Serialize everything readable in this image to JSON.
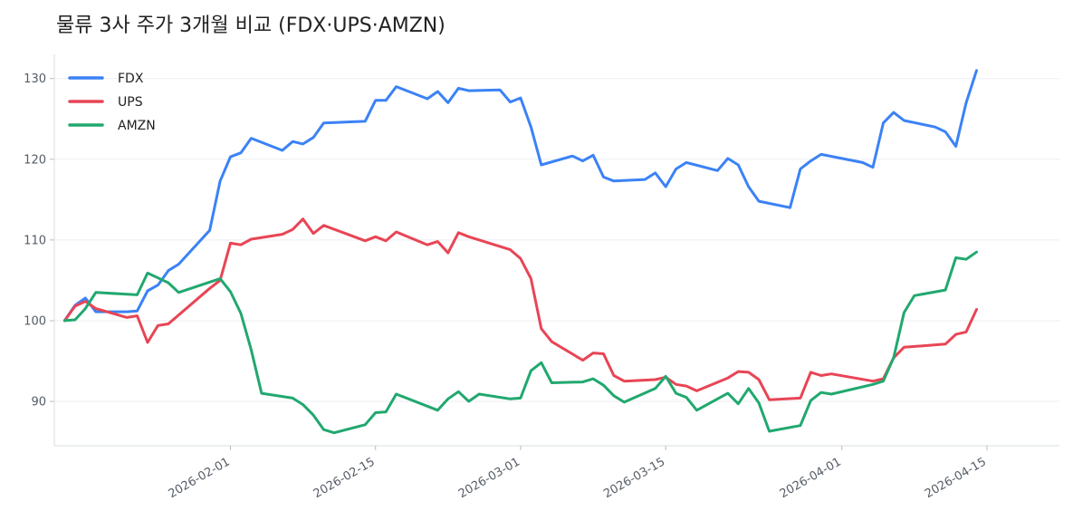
{
  "chart_data": {
    "type": "line",
    "title": "물류 3사 주가 3개월 비교 (FDX·UPS·AMZN)",
    "xlabel": "",
    "ylabel": "",
    "x_ticks": [
      "2026-02-01",
      "2026-02-15",
      "2026-03-01",
      "2026-03-15",
      "2026-04-01",
      "2026-04-15"
    ],
    "y_ticks": [
      90,
      100,
      110,
      120,
      130
    ],
    "xlim": [
      "2026-01-15",
      "2026-04-22"
    ],
    "ylim": [
      84.5,
      133
    ],
    "grid": "horizontal",
    "legend_position": "top-left",
    "series": [
      {
        "name": "FDX",
        "color": "#3b82f6",
        "points": [
          [
            "2026-01-16",
            100.0
          ],
          [
            "2026-01-17",
            101.9
          ],
          [
            "2026-01-18",
            102.8
          ],
          [
            "2026-01-19",
            101.1
          ],
          [
            "2026-01-22",
            101.1
          ],
          [
            "2026-01-23",
            101.2
          ],
          [
            "2026-01-24",
            103.7
          ],
          [
            "2026-01-25",
            104.4
          ],
          [
            "2026-01-26",
            106.2
          ],
          [
            "2026-01-27",
            107.0
          ],
          [
            "2026-01-30",
            111.2
          ],
          [
            "2026-01-31",
            117.3
          ],
          [
            "2026-02-01",
            120.3
          ],
          [
            "2026-02-02",
            120.8
          ],
          [
            "2026-02-03",
            122.6
          ],
          [
            "2026-02-06",
            121.1
          ],
          [
            "2026-02-07",
            122.2
          ],
          [
            "2026-02-08",
            121.9
          ],
          [
            "2026-02-09",
            122.7
          ],
          [
            "2026-02-10",
            124.5
          ],
          [
            "2026-02-14",
            124.7
          ],
          [
            "2026-02-15",
            127.3
          ],
          [
            "2026-02-16",
            127.3
          ],
          [
            "2026-02-17",
            129.0
          ],
          [
            "2026-02-20",
            127.5
          ],
          [
            "2026-02-21",
            128.4
          ],
          [
            "2026-02-22",
            127.0
          ],
          [
            "2026-02-23",
            128.8
          ],
          [
            "2026-02-24",
            128.5
          ],
          [
            "2026-02-27",
            128.6
          ],
          [
            "2026-02-28",
            127.1
          ],
          [
            "2026-03-01",
            127.6
          ],
          [
            "2026-03-02",
            124.0
          ],
          [
            "2026-03-03",
            119.3
          ],
          [
            "2026-03-06",
            120.4
          ],
          [
            "2026-03-07",
            119.8
          ],
          [
            "2026-03-08",
            120.5
          ],
          [
            "2026-03-09",
            117.8
          ],
          [
            "2026-03-10",
            117.3
          ],
          [
            "2026-03-13",
            117.5
          ],
          [
            "2026-03-14",
            118.3
          ],
          [
            "2026-03-15",
            116.6
          ],
          [
            "2026-03-16",
            118.8
          ],
          [
            "2026-03-17",
            119.6
          ],
          [
            "2026-03-20",
            118.6
          ],
          [
            "2026-03-21",
            120.1
          ],
          [
            "2026-03-22",
            119.3
          ],
          [
            "2026-03-23",
            116.6
          ],
          [
            "2026-03-24",
            114.8
          ],
          [
            "2026-03-27",
            114.0
          ],
          [
            "2026-03-28",
            118.8
          ],
          [
            "2026-03-29",
            119.8
          ],
          [
            "2026-03-30",
            120.6
          ],
          [
            "2026-04-03",
            119.6
          ],
          [
            "2026-04-04",
            119.0
          ],
          [
            "2026-04-05",
            124.5
          ],
          [
            "2026-04-06",
            125.8
          ],
          [
            "2026-04-07",
            124.8
          ],
          [
            "2026-04-10",
            124.0
          ],
          [
            "2026-04-11",
            123.4
          ],
          [
            "2026-04-12",
            121.6
          ],
          [
            "2026-04-13",
            127.0
          ],
          [
            "2026-04-14",
            131.0
          ]
        ]
      },
      {
        "name": "UPS",
        "color": "#e84555",
        "points": [
          [
            "2026-01-16",
            100.0
          ],
          [
            "2026-01-17",
            101.8
          ],
          [
            "2026-01-18",
            102.4
          ],
          [
            "2026-01-19",
            101.5
          ],
          [
            "2026-01-22",
            100.4
          ],
          [
            "2026-01-23",
            100.6
          ],
          [
            "2026-01-24",
            97.3
          ],
          [
            "2026-01-25",
            99.4
          ],
          [
            "2026-01-26",
            99.6
          ],
          [
            "2026-01-30",
            104.0
          ],
          [
            "2026-01-31",
            105.0
          ],
          [
            "2026-02-01",
            109.6
          ],
          [
            "2026-02-02",
            109.4
          ],
          [
            "2026-02-03",
            110.1
          ],
          [
            "2026-02-06",
            110.7
          ],
          [
            "2026-02-07",
            111.3
          ],
          [
            "2026-02-08",
            112.6
          ],
          [
            "2026-02-09",
            110.8
          ],
          [
            "2026-02-10",
            111.8
          ],
          [
            "2026-02-14",
            109.9
          ],
          [
            "2026-02-15",
            110.4
          ],
          [
            "2026-02-16",
            109.9
          ],
          [
            "2026-02-17",
            111.0
          ],
          [
            "2026-02-20",
            109.4
          ],
          [
            "2026-02-21",
            109.8
          ],
          [
            "2026-02-22",
            108.4
          ],
          [
            "2026-02-23",
            110.9
          ],
          [
            "2026-02-24",
            110.4
          ],
          [
            "2026-02-28",
            108.8
          ],
          [
            "2026-03-01",
            107.7
          ],
          [
            "2026-03-02",
            105.2
          ],
          [
            "2026-03-03",
            99.0
          ],
          [
            "2026-03-04",
            97.4
          ],
          [
            "2026-03-07",
            95.1
          ],
          [
            "2026-03-08",
            96.0
          ],
          [
            "2026-03-09",
            95.9
          ],
          [
            "2026-03-10",
            93.2
          ],
          [
            "2026-03-11",
            92.5
          ],
          [
            "2026-03-14",
            92.7
          ],
          [
            "2026-03-15",
            93.0
          ],
          [
            "2026-03-16",
            92.1
          ],
          [
            "2026-03-17",
            91.9
          ],
          [
            "2026-03-18",
            91.3
          ],
          [
            "2026-03-21",
            92.9
          ],
          [
            "2026-03-22",
            93.7
          ],
          [
            "2026-03-23",
            93.6
          ],
          [
            "2026-03-24",
            92.7
          ],
          [
            "2026-03-25",
            90.2
          ],
          [
            "2026-03-28",
            90.4
          ],
          [
            "2026-03-29",
            93.6
          ],
          [
            "2026-03-30",
            93.2
          ],
          [
            "2026-03-31",
            93.4
          ],
          [
            "2026-04-04",
            92.5
          ],
          [
            "2026-04-05",
            92.8
          ],
          [
            "2026-04-06",
            95.4
          ],
          [
            "2026-04-07",
            96.7
          ],
          [
            "2026-04-11",
            97.1
          ],
          [
            "2026-04-12",
            98.3
          ],
          [
            "2026-04-13",
            98.6
          ],
          [
            "2026-04-14",
            101.4
          ]
        ]
      },
      {
        "name": "AMZN",
        "color": "#21a86f",
        "points": [
          [
            "2026-01-16",
            100.0
          ],
          [
            "2026-01-17",
            100.1
          ],
          [
            "2026-01-18",
            101.5
          ],
          [
            "2026-01-19",
            103.5
          ],
          [
            "2026-01-23",
            103.2
          ],
          [
            "2026-01-24",
            105.9
          ],
          [
            "2026-01-25",
            105.3
          ],
          [
            "2026-01-26",
            104.7
          ],
          [
            "2026-01-27",
            103.5
          ],
          [
            "2026-01-31",
            105.2
          ],
          [
            "2026-02-01",
            103.6
          ],
          [
            "2026-02-02",
            100.9
          ],
          [
            "2026-02-03",
            96.4
          ],
          [
            "2026-02-04",
            91.0
          ],
          [
            "2026-02-07",
            90.4
          ],
          [
            "2026-02-08",
            89.6
          ],
          [
            "2026-02-09",
            88.3
          ],
          [
            "2026-02-10",
            86.5
          ],
          [
            "2026-02-11",
            86.1
          ],
          [
            "2026-02-14",
            87.1
          ],
          [
            "2026-02-15",
            88.6
          ],
          [
            "2026-02-16",
            88.7
          ],
          [
            "2026-02-17",
            90.9
          ],
          [
            "2026-02-21",
            88.9
          ],
          [
            "2026-02-22",
            90.3
          ],
          [
            "2026-02-23",
            91.2
          ],
          [
            "2026-02-24",
            90.0
          ],
          [
            "2026-02-25",
            90.9
          ],
          [
            "2026-02-28",
            90.3
          ],
          [
            "2026-03-01",
            90.4
          ],
          [
            "2026-03-02",
            93.8
          ],
          [
            "2026-03-03",
            94.8
          ],
          [
            "2026-03-04",
            92.3
          ],
          [
            "2026-03-07",
            92.4
          ],
          [
            "2026-03-08",
            92.8
          ],
          [
            "2026-03-09",
            92.0
          ],
          [
            "2026-03-10",
            90.7
          ],
          [
            "2026-03-11",
            89.9
          ],
          [
            "2026-03-14",
            91.6
          ],
          [
            "2026-03-15",
            93.1
          ],
          [
            "2026-03-16",
            91.0
          ],
          [
            "2026-03-17",
            90.5
          ],
          [
            "2026-03-18",
            88.9
          ],
          [
            "2026-03-21",
            91.0
          ],
          [
            "2026-03-22",
            89.7
          ],
          [
            "2026-03-23",
            91.6
          ],
          [
            "2026-03-24",
            89.8
          ],
          [
            "2026-03-25",
            86.3
          ],
          [
            "2026-03-28",
            87.0
          ],
          [
            "2026-03-29",
            90.1
          ],
          [
            "2026-03-30",
            91.1
          ],
          [
            "2026-03-31",
            90.9
          ],
          [
            "2026-04-04",
            92.1
          ],
          [
            "2026-04-05",
            92.5
          ],
          [
            "2026-04-06",
            95.4
          ],
          [
            "2026-04-07",
            101.0
          ],
          [
            "2026-04-08",
            103.1
          ],
          [
            "2026-04-11",
            103.8
          ],
          [
            "2026-04-12",
            107.8
          ],
          [
            "2026-04-13",
            107.6
          ],
          [
            "2026-04-14",
            108.5
          ]
        ]
      }
    ]
  }
}
